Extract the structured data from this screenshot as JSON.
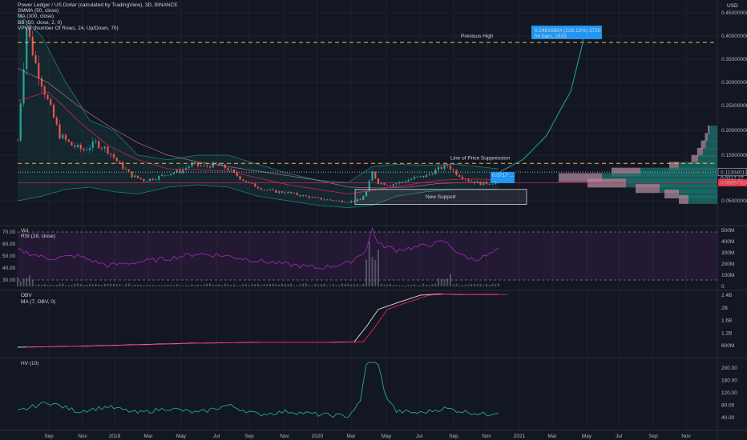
{
  "header": {
    "title": "Power Ledger / US Dollar (calculated by TradingView), 3D, BINANCE",
    "indicators": [
      "SMMA (50, close)",
      "MA (100, close)",
      "BB (50, close, 2, 0)",
      "VPVR (Number Of Rows, 24, Up/Down, 70)"
    ],
    "currency": "USD"
  },
  "colors": {
    "background": "#131722",
    "up": "#26a69a",
    "down": "#ef5350",
    "smma": "#e91e63",
    "bb_fill": "#1b6e67",
    "rsi": "#9c27b0",
    "obv": "#ffffff",
    "obv_ma": "#e91e63",
    "hv": "#26a69a",
    "volume": "#787b86",
    "label_blue": "#2196f3",
    "label_pink": "#f23645"
  },
  "x_axis": {
    "labels": [
      "Sep",
      "Nov",
      "2019",
      "Mar",
      "May",
      "Jul",
      "Sep",
      "Nov",
      "2020",
      "Mar",
      "May",
      "Jul",
      "Sep",
      "Nov",
      "2021",
      "Mar",
      "May",
      "Jul",
      "Sep",
      "Nov"
    ],
    "positions": [
      61,
      103,
      143,
      185,
      226,
      270,
      311,
      355,
      396,
      438,
      482,
      523,
      566,
      607,
      648,
      689,
      732,
      772,
      815,
      856
    ]
  },
  "price_axis": {
    "ticks": [
      "0.45000000",
      "0.40000000",
      "0.35000000",
      "0.30000000",
      "0.25000000",
      "0.20000000",
      "0.15000000",
      "0.05000000"
    ],
    "levels": [
      0.45,
      0.4,
      0.35,
      0.3,
      0.25,
      0.2,
      0.15,
      0.05
    ],
    "current_price_label": "0.11304013",
    "smma_label": "0.08957924",
    "hidden_label": "0.0317 27"
  },
  "volume_axis": {
    "ticks": [
      "500M",
      "400M",
      "300M",
      "200M",
      "100M",
      "0"
    ],
    "levels": [
      500,
      400,
      300,
      200,
      100,
      0
    ]
  },
  "rsi_axis": {
    "ticks": [
      "70.00",
      "60.00",
      "50.00",
      "40.00",
      "30.00"
    ],
    "levels": [
      70,
      60,
      50,
      40,
      30
    ]
  },
  "obv_axis": {
    "ticks": [
      "2.4B",
      "2B",
      "1.6B",
      "1.2B",
      "800M"
    ],
    "levels": [
      2.4,
      2.0,
      1.6,
      1.2,
      0.8
    ]
  },
  "hv_axis": {
    "ticks": [
      "200.00",
      "160.00",
      "120.00",
      "80.00",
      "40.00"
    ],
    "levels": [
      200,
      160,
      120,
      80,
      40
    ]
  },
  "panes": {
    "vol_label": "Vol",
    "rsi_label": "RSI (28, close)",
    "obv_label": "OBV",
    "obv_ma_label": "MA (7, OBV, 0)",
    "hv_label": "HV (10)"
  },
  "annotations": {
    "previous_high": "Previous High",
    "previous_high_level": 0.386,
    "price_suppression": "Line of Price Suppression",
    "suppression_level": 0.132,
    "new_support": "New Support",
    "support_range": [
      0.042,
      0.075
    ],
    "target_box_line1": "0.24616854 (226.12%) 2720",
    "target_box_line2": "54 bars, 162d",
    "entry_box_line1": "0.0717 ...",
    "entry_box_line2": "..."
  },
  "chart_data": {
    "type": "candlestick",
    "title": "Power Ledger / US Dollar (calculated by TradingView), 3D, BINANCE",
    "price_path": [
      [
        0,
        0.18
      ],
      [
        3,
        0.42
      ],
      [
        6,
        0.34
      ],
      [
        10,
        0.26
      ],
      [
        14,
        0.19
      ],
      [
        18,
        0.17
      ],
      [
        22,
        0.16
      ],
      [
        26,
        0.175
      ],
      [
        30,
        0.16
      ],
      [
        34,
        0.13
      ],
      [
        38,
        0.105
      ],
      [
        42,
        0.095
      ],
      [
        46,
        0.1
      ],
      [
        50,
        0.11
      ],
      [
        54,
        0.115
      ],
      [
        58,
        0.13
      ],
      [
        62,
        0.125
      ],
      [
        66,
        0.13
      ],
      [
        70,
        0.12
      ],
      [
        74,
        0.1
      ],
      [
        78,
        0.085
      ],
      [
        82,
        0.075
      ],
      [
        86,
        0.07
      ],
      [
        90,
        0.068
      ],
      [
        94,
        0.062
      ],
      [
        98,
        0.057
      ],
      [
        102,
        0.053
      ],
      [
        106,
        0.05
      ],
      [
        110,
        0.048
      ],
      [
        114,
        0.052
      ],
      [
        116,
        0.07
      ],
      [
        118,
        0.112
      ],
      [
        120,
        0.09
      ],
      [
        124,
        0.085
      ],
      [
        128,
        0.092
      ],
      [
        132,
        0.1
      ],
      [
        136,
        0.105
      ],
      [
        140,
        0.12
      ],
      [
        143,
        0.128
      ],
      [
        146,
        0.11
      ],
      [
        150,
        0.095
      ],
      [
        154,
        0.088
      ],
      [
        158,
        0.09
      ],
      [
        160,
        0.092
      ]
    ],
    "smma_path": [
      [
        0,
        0.26
      ],
      [
        10,
        0.28
      ],
      [
        20,
        0.22
      ],
      [
        30,
        0.17
      ],
      [
        40,
        0.14
      ],
      [
        50,
        0.12
      ],
      [
        60,
        0.118
      ],
      [
        70,
        0.115
      ],
      [
        80,
        0.1
      ],
      [
        90,
        0.085
      ],
      [
        100,
        0.075
      ],
      [
        110,
        0.065
      ],
      [
        120,
        0.075
      ],
      [
        130,
        0.085
      ],
      [
        140,
        0.095
      ],
      [
        150,
        0.098
      ],
      [
        160,
        0.096
      ]
    ],
    "ma_path": [
      [
        0,
        0.33
      ],
      [
        10,
        0.3
      ],
      [
        20,
        0.25
      ],
      [
        30,
        0.21
      ],
      [
        40,
        0.175
      ],
      [
        50,
        0.15
      ],
      [
        60,
        0.135
      ],
      [
        70,
        0.125
      ],
      [
        80,
        0.115
      ],
      [
        90,
        0.105
      ],
      [
        100,
        0.095
      ],
      [
        110,
        0.08
      ],
      [
        120,
        0.078
      ],
      [
        130,
        0.08
      ],
      [
        140,
        0.088
      ],
      [
        150,
        0.09
      ],
      [
        160,
        0.09
      ]
    ],
    "bb_upper": [
      [
        0,
        0.45
      ],
      [
        8,
        0.4
      ],
      [
        16,
        0.3
      ],
      [
        24,
        0.22
      ],
      [
        32,
        0.2
      ],
      [
        40,
        0.15
      ],
      [
        50,
        0.14
      ],
      [
        60,
        0.15
      ],
      [
        70,
        0.15
      ],
      [
        80,
        0.13
      ],
      [
        90,
        0.11
      ],
      [
        100,
        0.095
      ],
      [
        110,
        0.09
      ],
      [
        118,
        0.125
      ],
      [
        126,
        0.13
      ],
      [
        136,
        0.128
      ],
      [
        146,
        0.13
      ],
      [
        160,
        0.12
      ]
    ],
    "bb_lower": [
      [
        0,
        0.05
      ],
      [
        8,
        0.06
      ],
      [
        16,
        0.075
      ],
      [
        24,
        0.08
      ],
      [
        32,
        0.07
      ],
      [
        40,
        0.065
      ],
      [
        50,
        0.08
      ],
      [
        60,
        0.085
      ],
      [
        70,
        0.08
      ],
      [
        80,
        0.06
      ],
      [
        90,
        0.05
      ],
      [
        100,
        0.04
      ],
      [
        110,
        0.035
      ],
      [
        118,
        0.04
      ],
      [
        126,
        0.06
      ],
      [
        136,
        0.07
      ],
      [
        146,
        0.075
      ],
      [
        160,
        0.075
      ]
    ],
    "projection": [
      [
        160,
        0.112
      ],
      [
        168,
        0.14
      ],
      [
        176,
        0.19
      ],
      [
        184,
        0.28
      ],
      [
        188,
        0.385
      ]
    ],
    "rsi_path": [
      [
        0,
        55
      ],
      [
        10,
        48
      ],
      [
        20,
        50
      ],
      [
        30,
        42
      ],
      [
        40,
        45
      ],
      [
        50,
        48
      ],
      [
        60,
        52
      ],
      [
        70,
        50
      ],
      [
        80,
        46
      ],
      [
        90,
        43
      ],
      [
        100,
        40
      ],
      [
        110,
        44
      ],
      [
        116,
        55
      ],
      [
        118,
        73
      ],
      [
        120,
        60
      ],
      [
        126,
        55
      ],
      [
        134,
        58
      ],
      [
        142,
        62
      ],
      [
        148,
        50
      ],
      [
        152,
        47
      ],
      [
        156,
        50
      ],
      [
        160,
        55
      ]
    ],
    "obv_path": [
      [
        0,
        0.75
      ],
      [
        20,
        0.78
      ],
      [
        40,
        0.83
      ],
      [
        60,
        0.88
      ],
      [
        80,
        0.9
      ],
      [
        100,
        0.9
      ],
      [
        112,
        0.92
      ],
      [
        116,
        1.4
      ],
      [
        120,
        1.95
      ],
      [
        126,
        2.15
      ],
      [
        134,
        2.4
      ],
      [
        140,
        2.44
      ],
      [
        150,
        2.42
      ],
      [
        160,
        2.42
      ]
    ],
    "hv_path": [
      [
        0,
        60
      ],
      [
        10,
        90
      ],
      [
        20,
        60
      ],
      [
        30,
        75
      ],
      [
        40,
        55
      ],
      [
        50,
        70
      ],
      [
        60,
        55
      ],
      [
        70,
        80
      ],
      [
        80,
        50
      ],
      [
        90,
        60
      ],
      [
        100,
        50
      ],
      [
        110,
        45
      ],
      [
        114,
        90
      ],
      [
        116,
        215
      ],
      [
        120,
        215
      ],
      [
        122,
        120
      ],
      [
        126,
        60
      ],
      [
        134,
        55
      ],
      [
        142,
        70
      ],
      [
        148,
        60
      ],
      [
        156,
        50
      ],
      [
        160,
        60
      ]
    ],
    "vpvr_rows": [
      [
        0.2,
        8,
        2
      ],
      [
        0.185,
        10,
        3
      ],
      [
        0.17,
        12,
        5
      ],
      [
        0.155,
        15,
        6
      ],
      [
        0.14,
        20,
        7
      ],
      [
        0.125,
        40,
        10
      ],
      [
        0.112,
        80,
        30
      ],
      [
        0.1,
        120,
        45
      ],
      [
        0.088,
        95,
        40
      ],
      [
        0.076,
        60,
        25
      ],
      [
        0.064,
        40,
        15
      ],
      [
        0.052,
        30,
        10
      ]
    ]
  }
}
